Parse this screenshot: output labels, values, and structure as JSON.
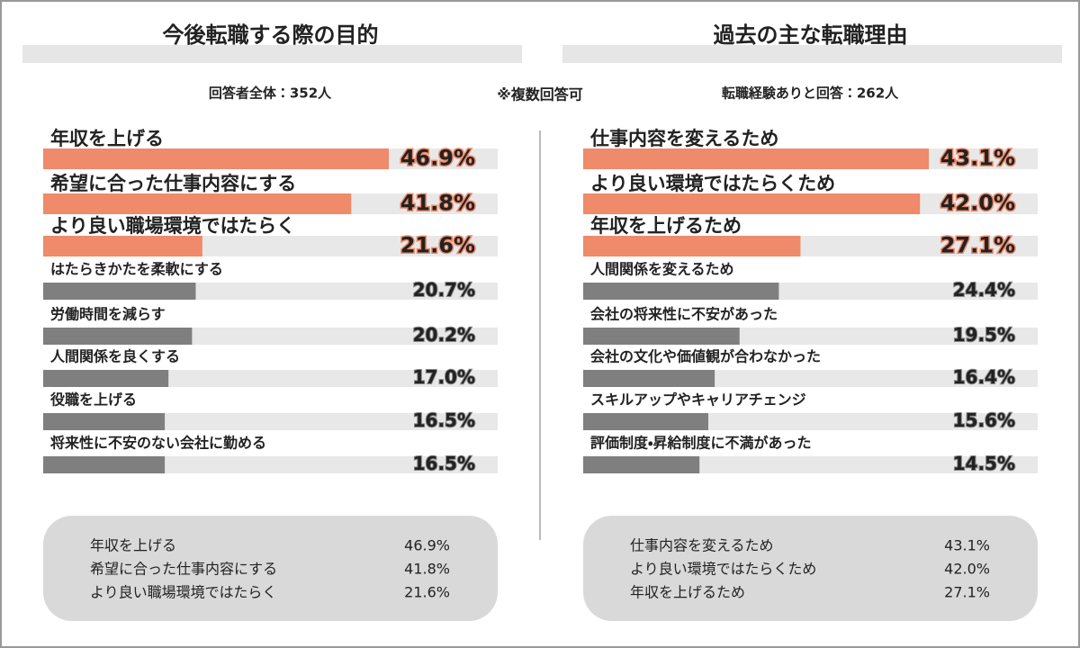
{
  "note": "※複数回答可",
  "chart_data": [
    {
      "type": "bar",
      "title": "今後転職する際の目的",
      "subtitle": "回答者全体：352人",
      "categories": [
        "年収を上げる",
        "希望に合った仕事内容にする",
        "より良い職場環境ではたらく",
        "はたらきかたを柔軟にする",
        "労働時間を減らす",
        "人間関係を良くする",
        "役職を上げる",
        "将来性に不安のない会社に勤める"
      ],
      "values": [
        46.9,
        41.8,
        21.6,
        20.7,
        20.2,
        17.0,
        16.5,
        16.5
      ],
      "value_labels": [
        "46.9%",
        "41.8%",
        "21.6%",
        "20.7%",
        "20.2%",
        "17.0%",
        "16.5%",
        "16.5%"
      ],
      "colors": [
        "#ef8a6a",
        "#ef8a6a",
        "#ef8a6a",
        "#7f7f7f",
        "#7f7f7f",
        "#7f7f7f",
        "#7f7f7f",
        "#7f7f7f"
      ]
    },
    {
      "type": "bar",
      "title": "過去の主な転職理由",
      "subtitle": "転職経験ありと回答：262人",
      "categories": [
        "仕事内容を変えるため",
        "より良い環境ではたらくため",
        "年収を上げるため",
        "人間関係を変えるため",
        "会社の将来性に不安があった",
        "会社の文化や価値観が合わなかった",
        "スキルアップやキャリアチェンジ",
        "評価制度・昇給制度に不満があった"
      ],
      "values": [
        43.1,
        42.0,
        27.1,
        24.4,
        19.5,
        16.4,
        15.6,
        14.5
      ],
      "value_labels": [
        "43.1%",
        "42.0%",
        "27.1%",
        "24.4%",
        "19.5%",
        "16.4%",
        "15.6%",
        "14.5%"
      ],
      "colors": [
        "#ef8a6a",
        "#ef8a6a",
        "#ef8a6a",
        "#7f7f7f",
        "#7f7f7f",
        "#7f7f7f",
        "#7f7f7f",
        "#7f7f7f"
      ]
    }
  ]
}
